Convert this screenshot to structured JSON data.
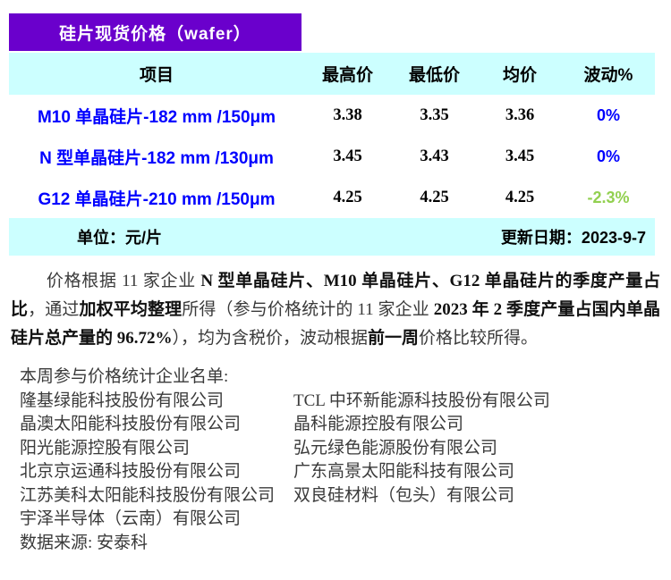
{
  "banner": {
    "title": "硅片现货价格（wafer）"
  },
  "table": {
    "headers": [
      "项目",
      "最高价",
      "最低价",
      "均价",
      "波动%"
    ],
    "rows": [
      {
        "item": "M10 单晶硅片-182 mm /150μm",
        "high": "3.38",
        "low": "3.35",
        "avg": "3.36",
        "change": "0%",
        "change_color": "#0000FF"
      },
      {
        "item": "N 型单晶硅片-182 mm /130μm",
        "high": "3.45",
        "low": "3.43",
        "avg": "3.45",
        "change": "0%",
        "change_color": "#0000FF"
      },
      {
        "item": "G12 单晶硅片-210 mm /150μm",
        "high": "4.25",
        "low": "4.25",
        "avg": "4.25",
        "change": "-2.3%",
        "change_color": "#92D050"
      }
    ],
    "footer": {
      "unit": "单位：元/片",
      "update": "更新日期：2023-9-7"
    }
  },
  "note": {
    "segments": [
      {
        "text": "价格根据 11 家企业 ",
        "bold": false
      },
      {
        "text": "N 型单晶硅片、M10 单晶硅片、G12 单晶硅片的季度产量占比",
        "bold": true
      },
      {
        "text": "，通过",
        "bold": false
      },
      {
        "text": "加权平均整理",
        "bold": true
      },
      {
        "text": "所得（参与价格统计的 11 家企业 ",
        "bold": false
      },
      {
        "text": "2023 年 2 季度产量占国内单晶硅片总产量的 96.72%",
        "bold": true
      },
      {
        "text": "），均为含税价，波动根据",
        "bold": false
      },
      {
        "text": "前一周",
        "bold": true
      },
      {
        "text": "价格比较所得。",
        "bold": false
      }
    ]
  },
  "companies": {
    "title": "本周参与价格统计企业名单:",
    "left": [
      "隆基绿能科技股份有限公司",
      "晶澳太阳能科技股份有限公司",
      "阳光能源控股有限公司",
      "北京京运通科技股份有限公司",
      "江苏美科太阳能科技股份有限公司",
      "宇泽半导体（云南）有限公司"
    ],
    "right": [
      "TCL 中环新能源科技股份有限公司",
      "晶科能源控股有限公司",
      "弘元绿色能源股份有限公司",
      "广东高景太阳能科技有限公司",
      "双良硅材料（包头）有限公司"
    ],
    "source": "数据来源: 安泰科"
  },
  "colors": {
    "banner_bg": "#6A00CC",
    "table_band_bg": "#CCFFFF",
    "row_label_blue": "#0000FF",
    "change_flat_blue": "#0000FF",
    "change_down_green": "#92D050"
  }
}
